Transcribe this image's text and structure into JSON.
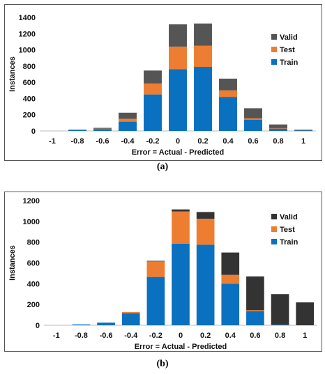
{
  "colors": {
    "train": "#0a70c0",
    "test": "#ed7d31",
    "valid": "#555555",
    "valid_b": "#333333"
  },
  "chart_data": [
    {
      "type": "bar",
      "stacked": true,
      "panel_label": "(a)",
      "xlabel": "Error = Actual - Predicted",
      "ylabel": "Instances",
      "categories": [
        "-1",
        "-0.8",
        "-0.6",
        "-0.4",
        "-0.2",
        "0",
        "0.2",
        "0.4",
        "0.6",
        "0.8",
        "1"
      ],
      "ylim": [
        0,
        1400
      ],
      "yticks": [
        "0",
        "200",
        "400",
        "600",
        "800",
        "1000",
        "1200",
        "1400"
      ],
      "legend_position": "right",
      "series": [
        {
          "name": "Train",
          "color": "#0a70c0",
          "values": [
            0,
            10,
            25,
            115,
            450,
            760,
            790,
            420,
            140,
            30,
            5
          ]
        },
        {
          "name": "Test",
          "color": "#ed7d31",
          "values": [
            0,
            0,
            3,
            35,
            135,
            280,
            260,
            80,
            15,
            5,
            0
          ]
        },
        {
          "name": "Valid",
          "color": "#555555",
          "values": [
            0,
            5,
            10,
            75,
            160,
            275,
            275,
            145,
            125,
            45,
            10
          ]
        }
      ]
    },
    {
      "type": "bar",
      "stacked": true,
      "panel_label": "(b)",
      "xlabel": "Error = Actual - Predicted",
      "ylabel": "Instances",
      "categories": [
        "-1",
        "-0.8",
        "-0.6",
        "-0.4",
        "-0.2",
        "0",
        "0.2",
        "0.4",
        "0.6",
        "0.8",
        "1"
      ],
      "ylim": [
        0,
        1200
      ],
      "yticks": [
        "0",
        "200",
        "400",
        "600",
        "800",
        "1000",
        "1200"
      ],
      "legend_position": "right",
      "series": [
        {
          "name": "Train",
          "color": "#0a70c0",
          "values": [
            0,
            8,
            25,
            115,
            465,
            785,
            775,
            400,
            135,
            5,
            0
          ]
        },
        {
          "name": "Test",
          "color": "#ed7d31",
          "values": [
            0,
            0,
            0,
            12,
            150,
            310,
            250,
            85,
            10,
            0,
            0
          ]
        },
        {
          "name": "Valid",
          "color": "#333333",
          "values": [
            0,
            0,
            0,
            0,
            5,
            20,
            65,
            215,
            325,
            295,
            220
          ]
        }
      ]
    }
  ]
}
